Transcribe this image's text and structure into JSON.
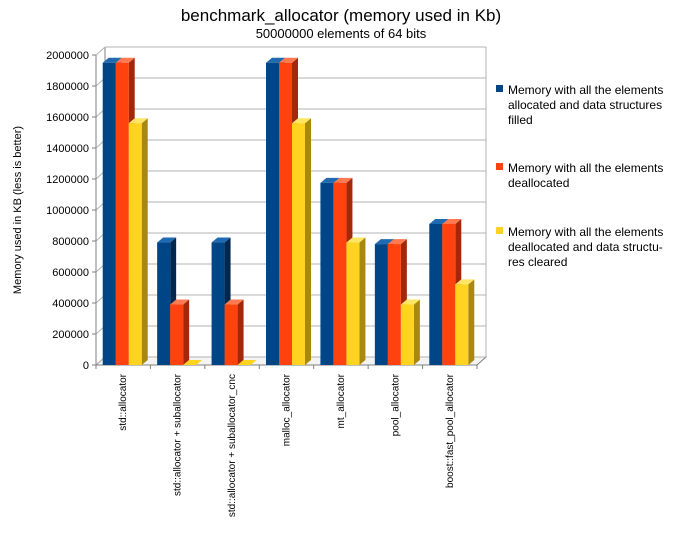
{
  "colors": {
    "series_front": [
      "#004586",
      "#ff420e",
      "#ffd320"
    ],
    "series_side": [
      "#00284f",
      "#a3280a",
      "#a8890e"
    ],
    "series_top": [
      "#1f6ab0",
      "#ff7a50",
      "#ffe566"
    ],
    "grid": "#b3b3b3",
    "axis": "#7f7f7f"
  },
  "chart_data": {
    "type": "bar",
    "title": "benchmark_allocator (memory used in Kb)",
    "subtitle": "50000000 elements of 64 bits",
    "xlabel": "",
    "ylabel": "Memory used in KB (less is better)",
    "ylim": [
      0,
      2000000
    ],
    "yticks": [
      "0",
      "200000",
      "400000",
      "600000",
      "800000",
      "1000000",
      "1200000",
      "1400000",
      "1600000",
      "1800000",
      "2000000"
    ],
    "grid": true,
    "legend_position": "right",
    "categories": [
      "std::allocator",
      "std::allocator + suballocator",
      "std::allocator + suballocator_cnc",
      "malloc_allocator",
      "mt_allocator",
      "pool_allocator",
      "boost::fast_pool_allocator"
    ],
    "series": [
      {
        "name_lines": [
          "Memory with all the elements",
          "allocated and data structures",
          "filled"
        ],
        "values": [
          1950000,
          790000,
          790000,
          1950000,
          1175000,
          780000,
          910000
        ]
      },
      {
        "name_lines": [
          "Memory with all the elements",
          "deallocated"
        ],
        "values": [
          1950000,
          390000,
          390000,
          1950000,
          1175000,
          780000,
          910000
        ]
      },
      {
        "name_lines": [
          "Memory with all the elements",
          "deallocated and data structu-",
          "res cleared"
        ],
        "values": [
          1560000,
          0,
          0,
          1560000,
          790000,
          390000,
          520000
        ]
      }
    ]
  }
}
